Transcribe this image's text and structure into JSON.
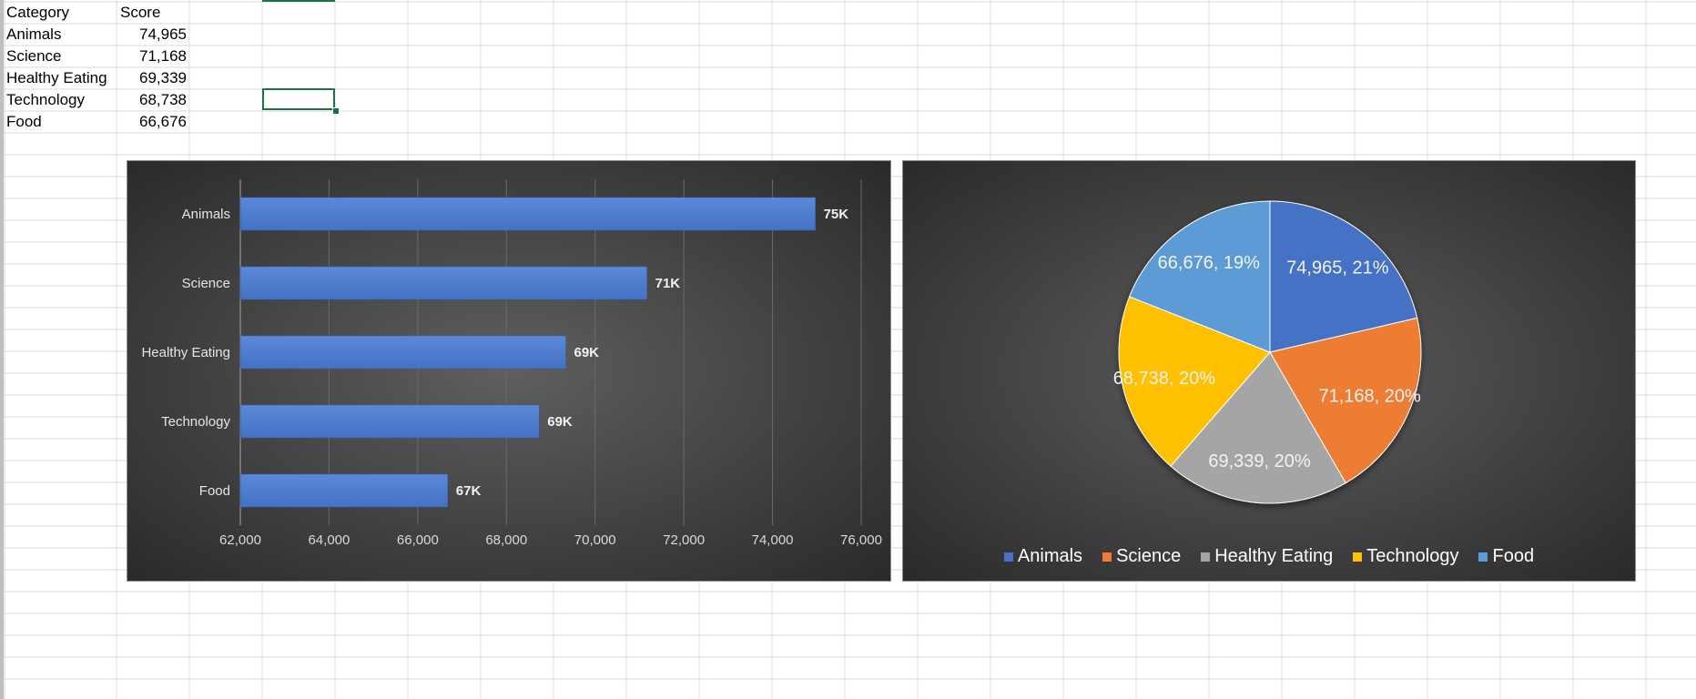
{
  "sheet": {
    "header": {
      "category": "Category",
      "score": "Score"
    },
    "rows": [
      {
        "category": "Animals",
        "score": "74,965"
      },
      {
        "category": "Science",
        "score": "71,168"
      },
      {
        "category": "Healthy Eating",
        "score": "69,339"
      },
      {
        "category": "Technology",
        "score": "68,738"
      },
      {
        "category": "Food",
        "score": "66,676"
      }
    ]
  },
  "colors": {
    "bar": "#4472c4",
    "animals": "#4472c4",
    "science": "#ed7d31",
    "healthy_eating": "#a5a5a5",
    "technology": "#ffc000",
    "food": "#5b9bd5",
    "selection": "#1e7145"
  },
  "chart_data": [
    {
      "type": "bar",
      "orientation": "horizontal",
      "categories": [
        "Animals",
        "Science",
        "Healthy Eating",
        "Technology",
        "Food"
      ],
      "values": [
        74965,
        71168,
        69339,
        68738,
        66676
      ],
      "data_labels": [
        "75K",
        "71K",
        "69K",
        "69K",
        "67K"
      ],
      "xlim": [
        62000,
        76000
      ],
      "x_ticks": [
        62000,
        64000,
        66000,
        68000,
        70000,
        72000,
        74000,
        76000
      ],
      "x_tick_labels": [
        "62,000",
        "64,000",
        "66,000",
        "68,000",
        "70,000",
        "72,000",
        "74,000",
        "76,000"
      ],
      "grid": true
    },
    {
      "type": "pie",
      "categories": [
        "Animals",
        "Science",
        "Healthy Eating",
        "Technology",
        "Food"
      ],
      "values": [
        74965,
        71168,
        69339,
        68738,
        66676
      ],
      "data_labels": [
        "74,965, 21%",
        "71,168, 20%",
        "69,339, 20%",
        "68,738, 20%",
        "66,676, 19%"
      ],
      "legend": [
        "Animals",
        "Science",
        "Healthy Eating",
        "Technology",
        "Food"
      ],
      "legend_position": "bottom"
    }
  ]
}
